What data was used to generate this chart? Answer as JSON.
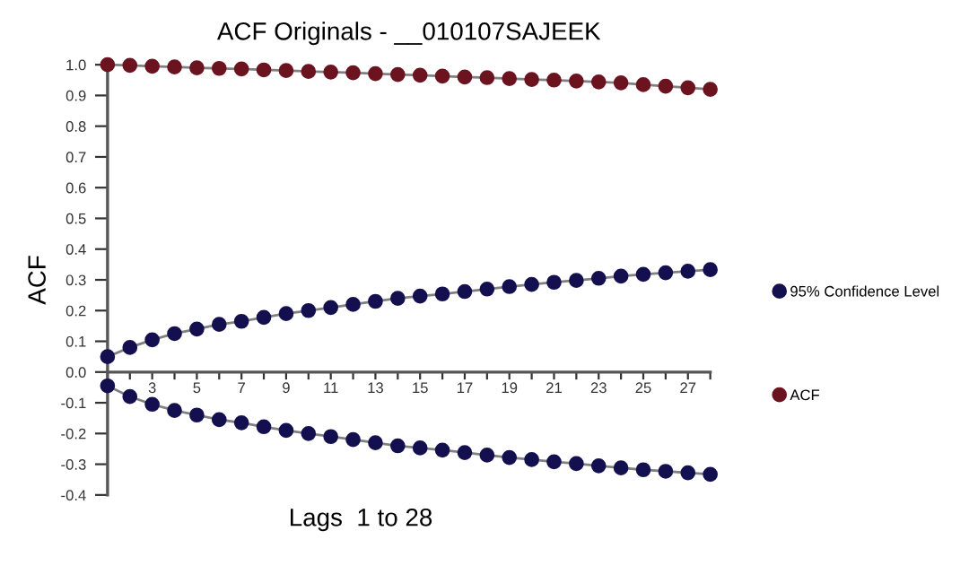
{
  "chart_data": {
    "type": "line",
    "title": "ACF Originals - __010107SAJEEK",
    "xlabel": "Lags  1 to 28",
    "ylabel": "ACF",
    "x": [
      1,
      2,
      3,
      4,
      5,
      6,
      7,
      8,
      9,
      10,
      11,
      12,
      13,
      14,
      15,
      16,
      17,
      18,
      19,
      20,
      21,
      22,
      23,
      24,
      25,
      26,
      27,
      28
    ],
    "series": [
      {
        "name": "95% Confidence Level",
        "color": "#14104f",
        "values": [
          0.05,
          0.08,
          0.105,
          0.125,
          0.14,
          0.155,
          0.165,
          0.178,
          0.19,
          0.2,
          0.21,
          0.22,
          0.23,
          0.24,
          0.247,
          0.254,
          0.262,
          0.27,
          0.278,
          0.285,
          0.292,
          0.298,
          0.305,
          0.312,
          0.318,
          0.323,
          0.328,
          0.333
        ]
      },
      {
        "color": "#14104f",
        "values": [
          -0.045,
          -0.08,
          -0.105,
          -0.125,
          -0.14,
          -0.155,
          -0.165,
          -0.178,
          -0.19,
          -0.2,
          -0.21,
          -0.22,
          -0.23,
          -0.24,
          -0.247,
          -0.254,
          -0.262,
          -0.27,
          -0.278,
          -0.285,
          -0.292,
          -0.298,
          -0.305,
          -0.312,
          -0.318,
          -0.323,
          -0.328,
          -0.333
        ]
      },
      {
        "name": "ACF",
        "color": "#6b1420",
        "values": [
          1.0,
          0.998,
          0.995,
          0.993,
          0.99,
          0.988,
          0.986,
          0.983,
          0.981,
          0.978,
          0.976,
          0.974,
          0.971,
          0.968,
          0.966,
          0.963,
          0.96,
          0.958,
          0.955,
          0.952,
          0.95,
          0.947,
          0.944,
          0.941,
          0.935,
          0.93,
          0.925,
          0.92
        ]
      }
    ],
    "xlim": [
      1,
      28
    ],
    "xticks": [
      {
        "value": 1,
        "label": null
      },
      {
        "value": 2,
        "label": null
      },
      3,
      {
        "value": 4,
        "label": null
      },
      5,
      {
        "value": 6,
        "label": null
      },
      7,
      {
        "value": 8,
        "label": null
      },
      9,
      {
        "value": 10,
        "label": null
      },
      11,
      {
        "value": 12,
        "label": null
      },
      13,
      {
        "value": 14,
        "label": null
      },
      15,
      {
        "value": 16,
        "label": null
      },
      17,
      {
        "value": 18,
        "label": null
      },
      19,
      {
        "value": 20,
        "label": null
      },
      21,
      {
        "value": 22,
        "label": null
      },
      23,
      {
        "value": 24,
        "label": null
      },
      25,
      {
        "value": 26,
        "label": null
      },
      27,
      {
        "value": 28,
        "label": null
      }
    ],
    "ylim": [
      -0.4,
      1.0
    ],
    "yticks": [
      {
        "value": -0.4,
        "label": "-0.4"
      },
      {
        "value": -0.3,
        "label": "-0.3"
      },
      {
        "value": -0.2,
        "label": "-0.2"
      },
      {
        "value": -0.1,
        "label": "-0.1"
      },
      {
        "value": 0,
        "label": "0.0"
      },
      0.1,
      0.2,
      0.3,
      0.4,
      0.5,
      0.6,
      0.7,
      0.8,
      0.9,
      {
        "value": 1.0,
        "label": "1.0"
      }
    ],
    "grid": false,
    "legend": "right",
    "marker": "circle",
    "line_style": "solid"
  }
}
